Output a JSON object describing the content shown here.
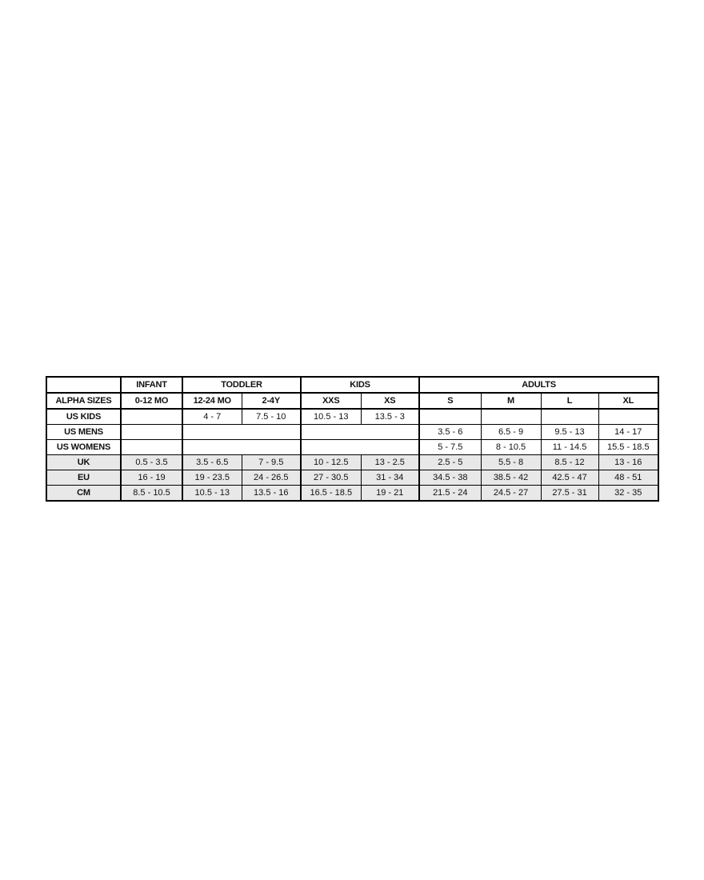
{
  "colors": {
    "background": "#ffffff",
    "border": "#000000",
    "text": "#111111",
    "shaded_row_bg": "#e8e8e8"
  },
  "chart_data": {
    "type": "table",
    "group_header": [
      {
        "label": "",
        "colspan": 1
      },
      {
        "label": "INFANT",
        "colspan": 1
      },
      {
        "label": "TODDLER",
        "colspan": 2
      },
      {
        "label": "KIDS",
        "colspan": 2
      },
      {
        "label": "ADULTS",
        "colspan": 4
      }
    ],
    "column_header": [
      "ALPHA SIZES",
      "0-12 MO",
      "12-24 MO",
      "2-4Y",
      "XXS",
      "XS",
      "S",
      "M",
      "L",
      "XL"
    ],
    "rows": [
      {
        "label": "US KIDS",
        "shaded": false,
        "cells": [
          {
            "text": "",
            "colspan": 1
          },
          {
            "text": "4 - 7",
            "colspan": 1
          },
          {
            "text": "7.5 - 10",
            "colspan": 1
          },
          {
            "text": "10.5 - 13",
            "colspan": 1
          },
          {
            "text": "13.5 - 3",
            "colspan": 1
          },
          {
            "text": "",
            "colspan": 1
          },
          {
            "text": "",
            "colspan": 1
          },
          {
            "text": "",
            "colspan": 1
          },
          {
            "text": "",
            "colspan": 1
          }
        ]
      },
      {
        "label": "US MENS",
        "shaded": false,
        "cells": [
          {
            "text": "",
            "colspan": 1
          },
          {
            "text": "",
            "colspan": 2
          },
          {
            "text": "",
            "colspan": 2
          },
          {
            "text": "3.5 - 6",
            "colspan": 1
          },
          {
            "text": "6.5 - 9",
            "colspan": 1
          },
          {
            "text": "9.5 - 13",
            "colspan": 1
          },
          {
            "text": "14 - 17",
            "colspan": 1
          }
        ]
      },
      {
        "label": "US WOMENS",
        "shaded": false,
        "cells": [
          {
            "text": "",
            "colspan": 1
          },
          {
            "text": "",
            "colspan": 2
          },
          {
            "text": "",
            "colspan": 2
          },
          {
            "text": "5 - 7.5",
            "colspan": 1
          },
          {
            "text": "8 - 10.5",
            "colspan": 1
          },
          {
            "text": "11 - 14.5",
            "colspan": 1
          },
          {
            "text": "15.5 - 18.5",
            "colspan": 1
          }
        ]
      },
      {
        "label": "UK",
        "shaded": true,
        "cells": [
          {
            "text": "0.5 - 3.5",
            "colspan": 1
          },
          {
            "text": "3.5 - 6.5",
            "colspan": 1
          },
          {
            "text": "7 - 9.5",
            "colspan": 1
          },
          {
            "text": "10 - 12.5",
            "colspan": 1
          },
          {
            "text": "13 - 2.5",
            "colspan": 1
          },
          {
            "text": "2.5 - 5",
            "colspan": 1
          },
          {
            "text": "5.5 - 8",
            "colspan": 1
          },
          {
            "text": "8.5 - 12",
            "colspan": 1
          },
          {
            "text": "13 - 16",
            "colspan": 1
          }
        ]
      },
      {
        "label": "EU",
        "shaded": true,
        "cells": [
          {
            "text": "16 - 19",
            "colspan": 1
          },
          {
            "text": "19 - 23.5",
            "colspan": 1
          },
          {
            "text": "24 - 26.5",
            "colspan": 1
          },
          {
            "text": "27 - 30.5",
            "colspan": 1
          },
          {
            "text": "31 - 34",
            "colspan": 1
          },
          {
            "text": "34.5 - 38",
            "colspan": 1
          },
          {
            "text": "38.5 - 42",
            "colspan": 1
          },
          {
            "text": "42.5 - 47",
            "colspan": 1
          },
          {
            "text": "48 - 51",
            "colspan": 1
          }
        ]
      },
      {
        "label": "CM",
        "shaded": true,
        "cells": [
          {
            "text": "8.5 - 10.5",
            "colspan": 1
          },
          {
            "text": "10.5 - 13",
            "colspan": 1
          },
          {
            "text": "13.5 - 16",
            "colspan": 1
          },
          {
            "text": "16.5 - 18.5",
            "colspan": 1
          },
          {
            "text": "19 - 21",
            "colspan": 1
          },
          {
            "text": "21.5 - 24",
            "colspan": 1
          },
          {
            "text": "24.5 - 27",
            "colspan": 1
          },
          {
            "text": "27.5 - 31",
            "colspan": 1
          },
          {
            "text": "32 - 35",
            "colspan": 1
          }
        ]
      }
    ]
  }
}
